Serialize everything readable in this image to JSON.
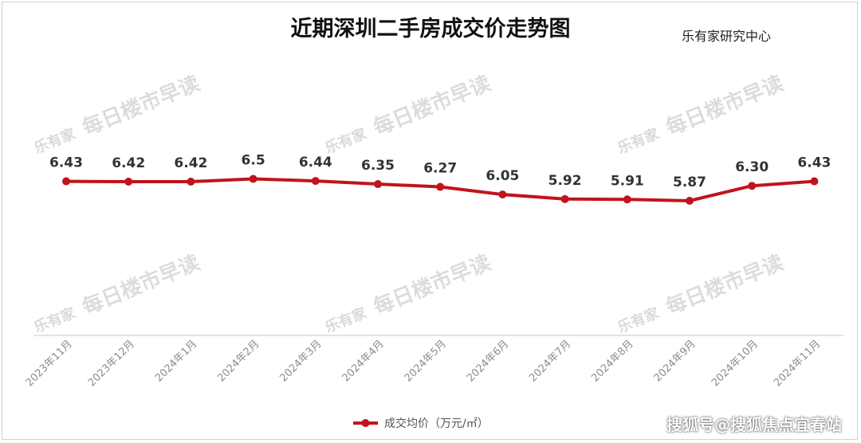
{
  "title": "近期深圳二手房成交价走势图",
  "source": "乐有家研究中心",
  "watermark": {
    "brand": "乐有家",
    "text": "每日楼市早读"
  },
  "credit": "搜狐号@搜狐焦点宜春站",
  "colors": {
    "series": "#c0141c",
    "axis": "#d9d9d9",
    "tick_text": "#8c8c8c"
  },
  "chart_data": {
    "type": "line",
    "title": "近期深圳二手房成交价走势图",
    "x": [
      "2023年11月",
      "2023年12月",
      "2024年1月",
      "2024年2月",
      "2024年3月",
      "2024年4月",
      "2024年5月",
      "2024年6月",
      "2024年7月",
      "2024年8月",
      "2024年9月",
      "2024年10月",
      "2024年11月"
    ],
    "series": [
      {
        "name": "成交均价（万元/㎡）",
        "values": [
          6.43,
          6.42,
          6.42,
          6.5,
          6.44,
          6.35,
          6.27,
          6.05,
          5.92,
          5.91,
          5.87,
          6.3,
          6.43
        ],
        "labels": [
          "6.43",
          "6.42",
          "6.42",
          "6.5",
          "6.44",
          "6.35",
          "6.27",
          "6.05",
          "5.92",
          "5.91",
          "5.87",
          "6.30",
          "6.43"
        ]
      }
    ],
    "xlabel": "",
    "ylabel": "",
    "legend_position": "bottom",
    "grid": false
  }
}
